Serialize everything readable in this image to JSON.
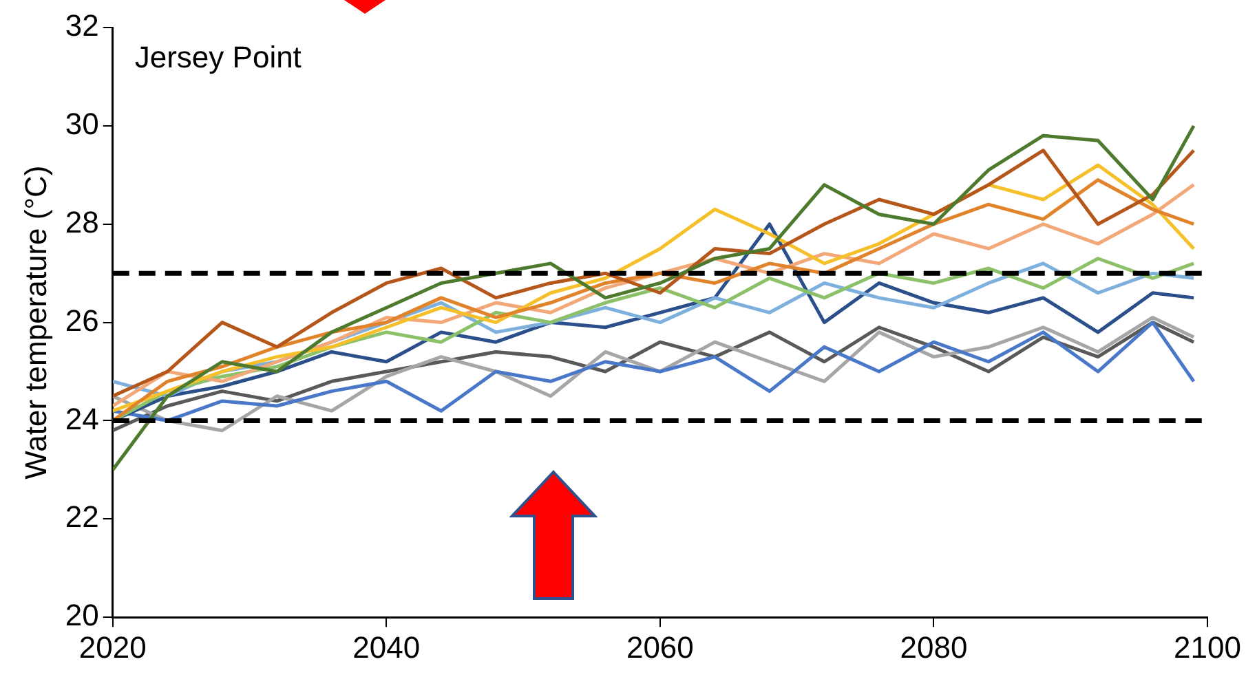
{
  "chart_data": {
    "type": "line",
    "ylabel": "Water temperature (°C)",
    "annotations": [
      "Jersey Point"
    ],
    "x": [
      2020,
      2024,
      2028,
      2032,
      2036,
      2040,
      2044,
      2048,
      2052,
      2056,
      2060,
      2064,
      2068,
      2072,
      2076,
      2080,
      2084,
      2088,
      2092,
      2096,
      2099
    ],
    "xlim": [
      2020,
      2100
    ],
    "xticks": [
      2020,
      2040,
      2060,
      2080,
      2100
    ],
    "ylim": [
      20,
      32
    ],
    "yticks": [
      20,
      22,
      24,
      26,
      28,
      30,
      32
    ],
    "grid": false,
    "legend": false,
    "marker": "none",
    "line_style": "solid",
    "ref_lines": [
      {
        "axis": "y",
        "value": 27,
        "color": "#000000",
        "line_style": "dashed"
      },
      {
        "axis": "y",
        "value": 24,
        "color": "#000000",
        "line_style": "dashed"
      }
    ],
    "series": [
      {
        "color": "#4e7a2e",
        "values": [
          23.0,
          24.5,
          25.2,
          25.0,
          25.8,
          26.3,
          26.8,
          27.0,
          27.2,
          26.5,
          26.8,
          27.3,
          27.5,
          28.8,
          28.2,
          28.0,
          29.1,
          29.8,
          29.7,
          28.5,
          30.0
        ]
      },
      {
        "color": "#b5561a",
        "values": [
          24.5,
          25.0,
          26.0,
          25.5,
          26.2,
          26.8,
          27.1,
          26.5,
          26.8,
          27.0,
          26.6,
          27.5,
          27.4,
          28.0,
          28.5,
          28.2,
          28.8,
          29.5,
          28.0,
          28.6,
          29.5
        ]
      },
      {
        "color": "#e0832a",
        "values": [
          24.0,
          24.8,
          25.1,
          25.5,
          25.8,
          26.0,
          26.5,
          26.1,
          26.4,
          26.8,
          27.0,
          26.8,
          27.2,
          27.0,
          27.5,
          28.0,
          28.4,
          28.1,
          28.9,
          28.3,
          28.0
        ]
      },
      {
        "color": "#f5c02a",
        "values": [
          24.2,
          24.6,
          25.0,
          25.3,
          25.5,
          25.9,
          26.3,
          26.0,
          26.6,
          26.9,
          27.5,
          28.3,
          27.8,
          27.2,
          27.6,
          28.2,
          28.8,
          28.5,
          29.2,
          28.4,
          27.5
        ]
      },
      {
        "color": "#f2a878",
        "values": [
          24.3,
          25.0,
          24.8,
          25.2,
          25.6,
          26.1,
          26.0,
          26.4,
          26.2,
          26.7,
          27.0,
          27.3,
          27.0,
          27.4,
          27.2,
          27.8,
          27.5,
          28.0,
          27.6,
          28.2,
          28.8
        ]
      },
      {
        "color": "#8cc16a",
        "values": [
          24.0,
          24.6,
          24.9,
          25.1,
          25.5,
          25.8,
          25.6,
          26.2,
          26.0,
          26.4,
          26.7,
          26.3,
          26.9,
          26.5,
          27.0,
          26.8,
          27.1,
          26.7,
          27.3,
          26.9,
          27.2
        ]
      },
      {
        "color": "#7eb0de",
        "values": [
          24.8,
          24.5,
          25.0,
          25.2,
          25.6,
          26.0,
          26.4,
          25.8,
          26.0,
          26.3,
          26.0,
          26.5,
          26.2,
          26.8,
          26.5,
          26.3,
          26.8,
          27.2,
          26.6,
          27.0,
          26.9
        ]
      },
      {
        "color": "#2a4f8a",
        "values": [
          24.0,
          24.5,
          24.7,
          25.0,
          25.4,
          25.2,
          25.8,
          25.6,
          26.0,
          25.9,
          26.2,
          26.5,
          28.0,
          26.0,
          26.8,
          26.4,
          26.2,
          26.5,
          25.8,
          26.6,
          26.5
        ]
      },
      {
        "color": "#4a78c8",
        "values": [
          24.2,
          24.0,
          24.4,
          24.3,
          24.6,
          24.8,
          24.2,
          25.0,
          24.8,
          25.2,
          25.0,
          25.3,
          24.6,
          25.5,
          25.0,
          25.6,
          25.2,
          25.8,
          25.0,
          26.0,
          24.8
        ]
      },
      {
        "color": "#a6a6a6",
        "values": [
          24.5,
          24.0,
          23.8,
          24.5,
          24.2,
          24.9,
          25.3,
          25.0,
          24.5,
          25.4,
          25.0,
          25.6,
          25.2,
          24.8,
          25.8,
          25.3,
          25.5,
          25.9,
          25.4,
          26.1,
          25.7
        ]
      },
      {
        "color": "#595959",
        "values": [
          23.8,
          24.3,
          24.6,
          24.4,
          24.8,
          25.0,
          25.2,
          25.4,
          25.3,
          25.0,
          25.6,
          25.3,
          25.8,
          25.2,
          25.9,
          25.5,
          25.0,
          25.7,
          25.3,
          26.0,
          25.6
        ]
      }
    ]
  }
}
